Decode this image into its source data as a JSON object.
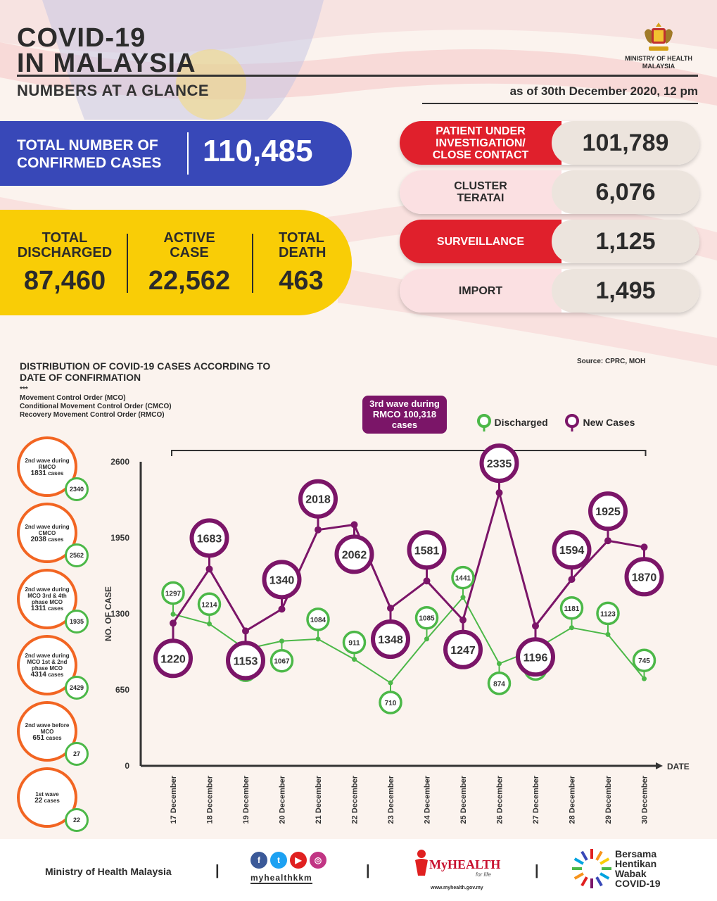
{
  "header": {
    "title_line1": "COVID-19",
    "title_line2": "IN MALAYSIA",
    "subtitle": "NUMBERS AT A GLANCE",
    "as_of": "as of 30th December 2020, 12 pm",
    "ministry": "MINISTRY OF HEALTH MALAYSIA"
  },
  "summary": {
    "confirmed_label": "TOTAL NUMBER OF CONFIRMED CASES",
    "confirmed_value": "110,485",
    "discharged_label": "TOTAL DISCHARGED",
    "discharged_value": "87,460",
    "active_label": "ACTIVE CASE",
    "active_value": "22,562",
    "death_label": "TOTAL DEATH",
    "death_value": "463"
  },
  "categories": [
    {
      "label": "PATIENT UNDER INVESTIGATION/ CLOSE CONTACT",
      "value": "101,789",
      "style": "red"
    },
    {
      "label": "CLUSTER TERATAI",
      "value": "6,076",
      "style": "pink"
    },
    {
      "label": "SURVEILLANCE",
      "value": "1,125",
      "style": "red"
    },
    {
      "label": "IMPORT",
      "value": "1,495",
      "style": "pink"
    }
  ],
  "chart_section": {
    "title": "DISTRIBUTION OF COVID-19 CASES ACCORDING TO DATE OF CONFIRMATION",
    "notes_marker": "***",
    "notes": [
      "Movement Control Order (MCO)",
      "Conditional Movement Control Order (CMCO)",
      "Recovery Movement Control Order (RMCO)"
    ],
    "source": "Source: CPRC, MOH",
    "wave3_label": "3rd wave during RMCO 100,318 cases",
    "legend_discharged": "Discharged",
    "legend_new": "New Cases"
  },
  "waves": [
    {
      "label": "2nd wave during RMCO",
      "cases": "1831",
      "suffix": "cases",
      "discharged": "2340"
    },
    {
      "label": "2nd wave during CMCO",
      "cases": "2038",
      "suffix": "cases",
      "discharged": "2562"
    },
    {
      "label": "2nd wave during MCO 3rd & 4th phase MCO",
      "cases": "1311",
      "suffix": "cases",
      "discharged": "1935"
    },
    {
      "label": "2nd wave during MCO 1st & 2nd phase MCO",
      "cases": "4314",
      "suffix": "cases",
      "discharged": "2429"
    },
    {
      "label": "2nd wave before MCO",
      "cases": "651",
      "suffix": "cases",
      "discharged": "27"
    },
    {
      "label": "1st wave",
      "cases": "22",
      "suffix": "cases",
      "discharged": "22"
    }
  ],
  "chart_data": {
    "type": "line",
    "categories": [
      "17 December",
      "18 December",
      "19 December",
      "20 December",
      "21 December",
      "22 December",
      "23 December",
      "24 December",
      "25 December",
      "26 December",
      "27 December",
      "28 December",
      "29 December",
      "30 December"
    ],
    "series": [
      {
        "name": "New Cases",
        "color": "#7b1568",
        "values": [
          1220,
          1683,
          1153,
          1340,
          2018,
          2062,
          1348,
          1581,
          1247,
          2335,
          1196,
          1594,
          1925,
          1870
        ]
      },
      {
        "name": "Discharged",
        "color": "#4cb848",
        "values": [
          1297,
          1214,
          998,
          1067,
          1084,
          911,
          710,
          1085,
          1441,
          874,
          997,
          1181,
          1123,
          745
        ]
      }
    ],
    "ylabel": "NO. OF CASE",
    "xlabel": "DATE",
    "yticks": [
      0,
      650,
      1300,
      1950,
      2600
    ],
    "ylim": [
      0,
      2600
    ]
  },
  "footer": {
    "ministry": "Ministry of Health Malaysia",
    "handle": "myhealthkkm",
    "myhealth": "MyHEALTH",
    "myhealth_tag": "for life",
    "myhealth_url": "www.myhealth.gov.my",
    "campaign": "Bersama Hentikan Wabak COVID-19",
    "social": [
      "f",
      "t",
      "▶",
      "◎"
    ]
  }
}
